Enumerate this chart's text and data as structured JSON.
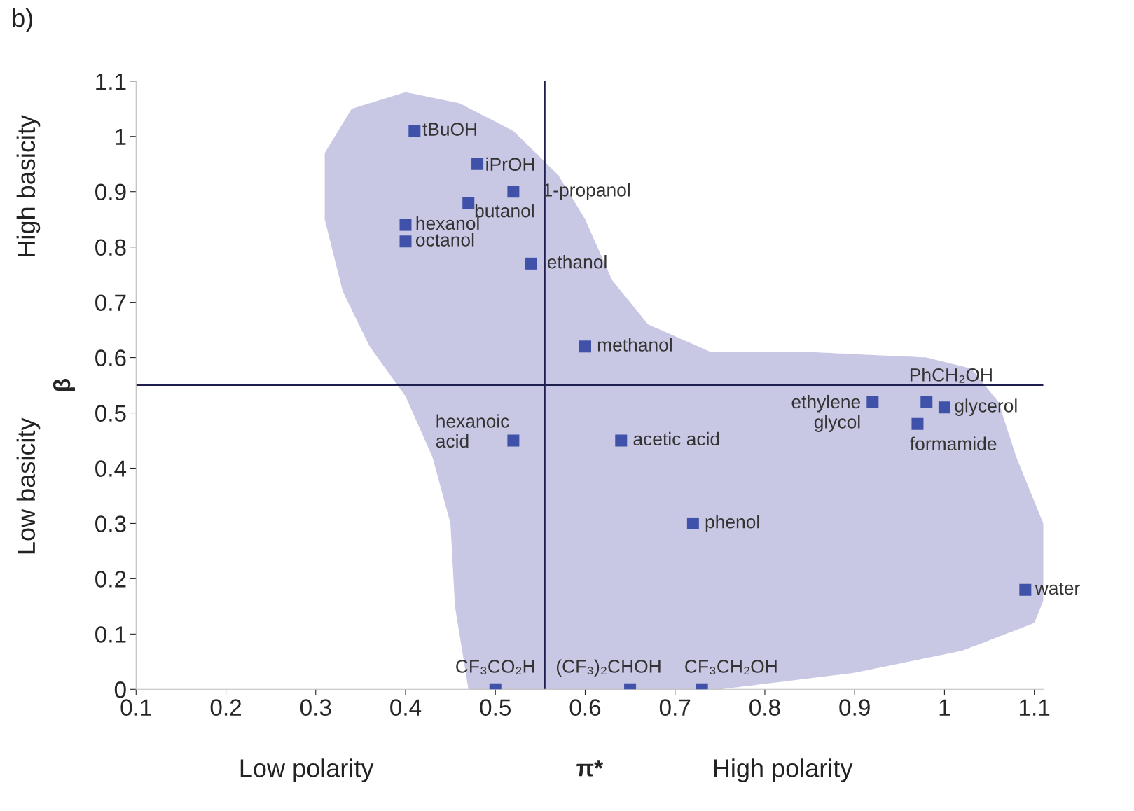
{
  "chart_data": {
    "type": "scatter",
    "xlabel": "π*",
    "ylabel": "β",
    "x": [
      0.41,
      0.48,
      0.52,
      0.47,
      0.4,
      0.4,
      0.54,
      0.6,
      0.52,
      0.64,
      0.92,
      0.98,
      1.0,
      0.97,
      0.72,
      1.09,
      0.5,
      0.65,
      0.73
    ],
    "series": [
      {
        "color": "#3f51a8",
        "values": [
          1.01,
          0.95,
          0.9,
          0.88,
          0.84,
          0.81,
          0.77,
          0.62,
          0.45,
          0.45,
          0.52,
          0.52,
          0.51,
          0.48,
          0.3,
          0.18,
          0.0,
          0.0,
          0.0
        ]
      }
    ],
    "marker": "square",
    "xlim": [
      0.1,
      1.11
    ],
    "ylim": [
      0,
      1.1
    ],
    "xticks": [
      0.1,
      0.2,
      0.3,
      0.4,
      0.5,
      0.6,
      0.7,
      0.8,
      0.9,
      1,
      1.1
    ],
    "yticks": [
      0,
      0.1,
      0.2,
      0.3,
      0.4,
      0.5,
      0.6,
      0.7,
      0.8,
      0.9,
      1,
      1.1
    ],
    "ref_lines": [
      {
        "axis": "x",
        "value": 0.555,
        "color": "#1f1f4f"
      },
      {
        "axis": "y",
        "value": 0.55,
        "color": "#1f1f4f"
      }
    ],
    "grid": false,
    "legend": false,
    "annotations": [
      {
        "text": "tBuOH",
        "x": 0.41,
        "y": 1.01
      },
      {
        "text": "iPrOH",
        "x": 0.48,
        "y": 0.95
      },
      {
        "text": "1-propanol",
        "x": 0.52,
        "y": 0.9
      },
      {
        "text": "butanol",
        "x": 0.47,
        "y": 0.88
      },
      {
        "text": "hexanol",
        "x": 0.4,
        "y": 0.84
      },
      {
        "text": "octanol",
        "x": 0.4,
        "y": 0.81
      },
      {
        "text": "ethanol",
        "x": 0.54,
        "y": 0.77
      },
      {
        "text": "methanol",
        "x": 0.6,
        "y": 0.62
      },
      {
        "text": "hexanoic\nacid",
        "x": 0.52,
        "y": 0.45
      },
      {
        "text": "acetic acid",
        "x": 0.64,
        "y": 0.45
      },
      {
        "text": "ethylene\nglycol",
        "x": 0.92,
        "y": 0.52
      },
      {
        "text": "PhCH₂OH",
        "x": 0.98,
        "y": 0.52
      },
      {
        "text": "glycerol",
        "x": 1.0,
        "y": 0.51
      },
      {
        "text": "formamide",
        "x": 0.97,
        "y": 0.48
      },
      {
        "text": "phenol",
        "x": 0.72,
        "y": 0.3
      },
      {
        "text": "water",
        "x": 1.09,
        "y": 0.18
      },
      {
        "text": "CF₃CO₂H",
        "x": 0.5,
        "y": 0.0
      },
      {
        "text": "(CF₃)₂CHOH",
        "x": 0.65,
        "y": 0.0
      },
      {
        "text": "CF₃CH₂OH",
        "x": 0.73,
        "y": 0.0
      },
      "b)",
      "High basicity",
      "Low basicity",
      "Low polarity",
      "High polarity"
    ]
  }
}
